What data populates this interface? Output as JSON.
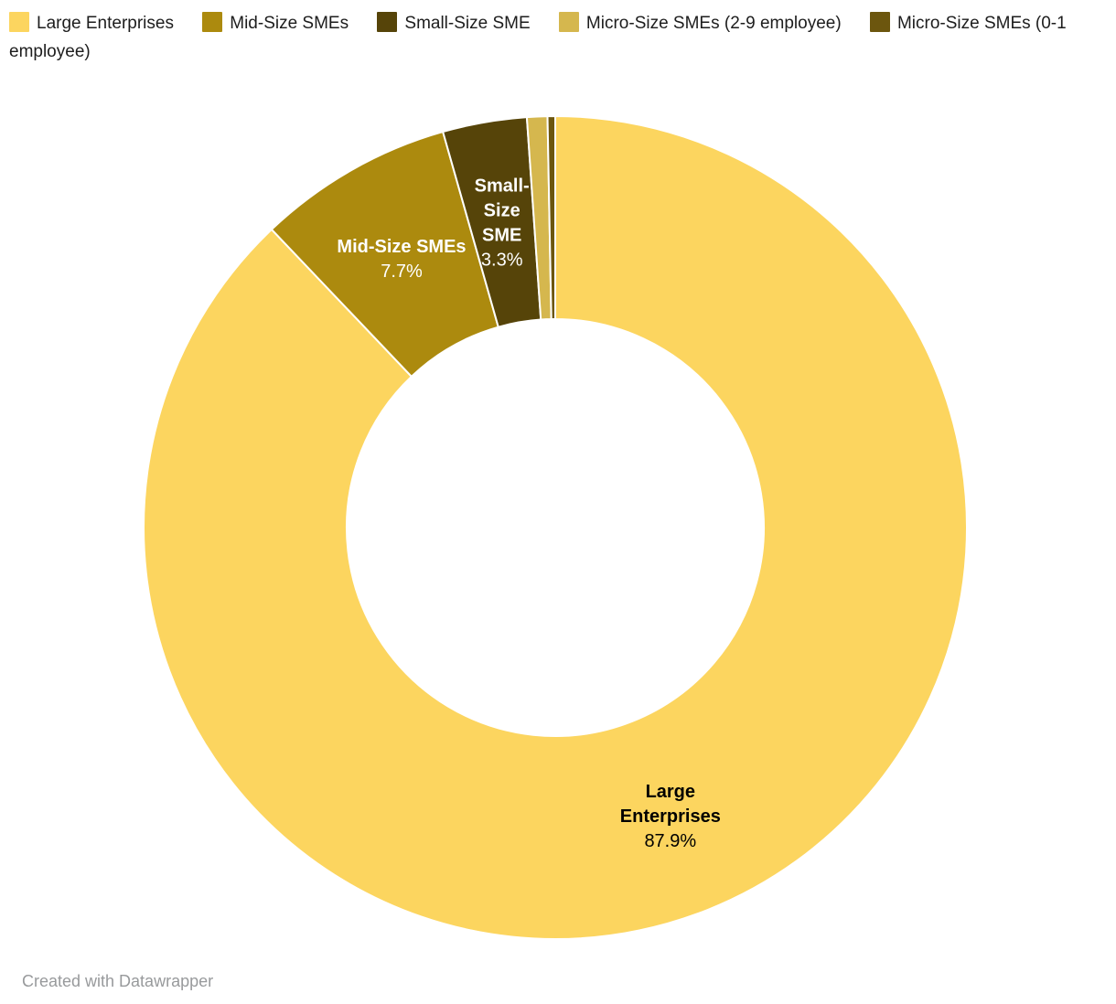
{
  "legend": {
    "position": "top"
  },
  "chart_data": {
    "type": "pie",
    "subtype": "donut",
    "title": "",
    "categories": [
      "Large Enterprises",
      "Mid-Size SMEs",
      "Small-Size SME",
      "Micro-Size SMEs (2-9 employee)",
      "Micro-Size SMEs (0-1 employee)"
    ],
    "values": [
      87.9,
      7.7,
      3.3,
      0.8,
      0.3
    ],
    "unit": "%",
    "colors": [
      "#FCD55F",
      "#AC8A0E",
      "#564409",
      "#D5B74E",
      "#6C560E"
    ],
    "direction": "clockwise",
    "start_angle_deg": 0,
    "legend_position": "top",
    "slice_labels": [
      {
        "show": true,
        "lines": [
          "Large",
          "Enterprises"
        ],
        "value": "87.9%",
        "color": "#000000"
      },
      {
        "show": true,
        "lines": [
          "Mid-Size SMEs"
        ],
        "value": "7.7%",
        "color": "#ffffff"
      },
      {
        "show": true,
        "lines": [
          "Small-",
          "Size",
          "SME"
        ],
        "value": "3.3%",
        "color": "#ffffff"
      },
      {
        "show": false
      },
      {
        "show": false
      }
    ]
  },
  "footer": {
    "credit": "Created with Datawrapper"
  }
}
